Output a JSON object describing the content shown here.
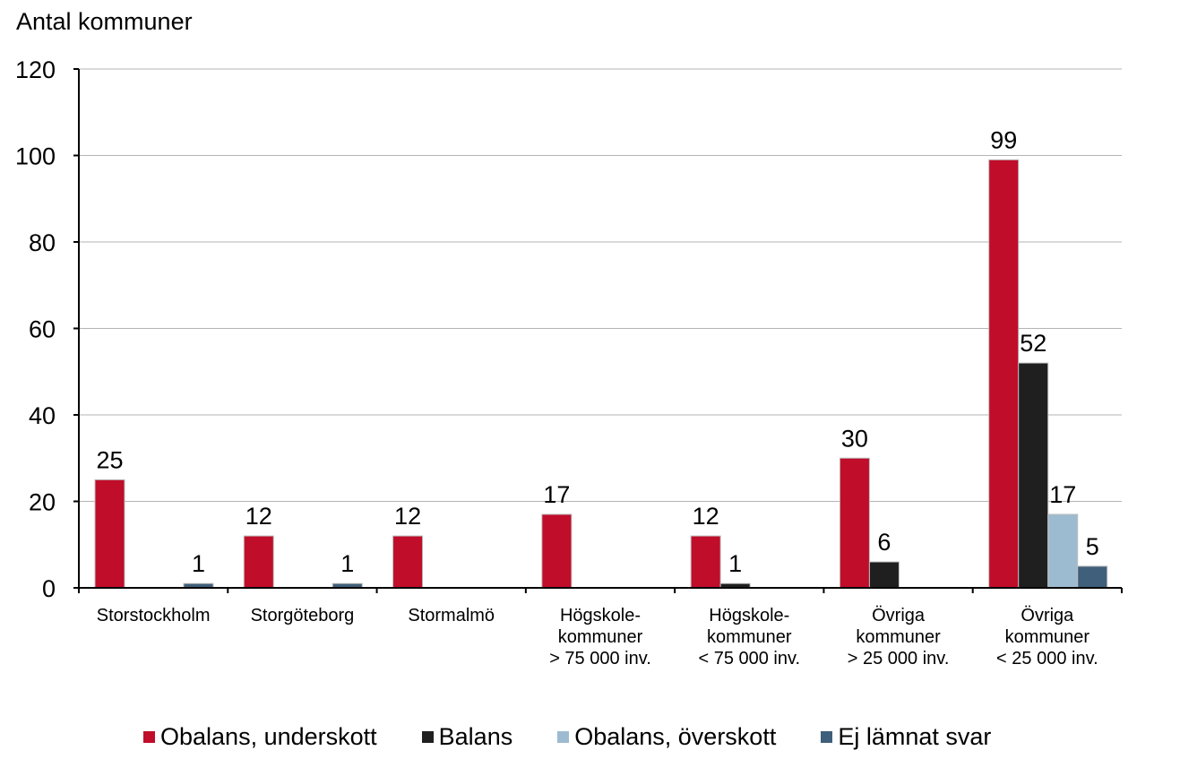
{
  "chart_data": {
    "type": "bar",
    "ylabel": "Antal kommuner",
    "xlabel": "",
    "ylim": [
      0,
      120
    ],
    "yticks": [
      0,
      20,
      40,
      60,
      80,
      100,
      120
    ],
    "grid": true,
    "legend_position": "bottom",
    "categories": [
      [
        "Storstockholm"
      ],
      [
        "Storgöteborg"
      ],
      [
        "Stormalmö"
      ],
      [
        "Högskole-",
        "kommuner",
        "> 75 000 inv."
      ],
      [
        "Högskole-",
        "kommuner",
        "< 75 000 inv."
      ],
      [
        "Övriga",
        "kommuner",
        "> 25 000 inv."
      ],
      [
        "Övriga",
        "kommuner",
        "< 25 000 inv."
      ]
    ],
    "series": [
      {
        "name": "Obalans, underskott",
        "color": "#c00d2a",
        "values": [
          25,
          12,
          12,
          17,
          12,
          30,
          99
        ]
      },
      {
        "name": "Balans",
        "color": "#1f1f1f",
        "values": [
          null,
          null,
          null,
          null,
          1,
          6,
          52
        ]
      },
      {
        "name": "Obalans, överskott",
        "color": "#9dbbd0",
        "values": [
          null,
          null,
          null,
          null,
          null,
          null,
          17
        ]
      },
      {
        "name": "Ej lämnat svar",
        "color": "#3f5f7a",
        "values": [
          1,
          1,
          null,
          null,
          null,
          null,
          5
        ]
      }
    ]
  }
}
